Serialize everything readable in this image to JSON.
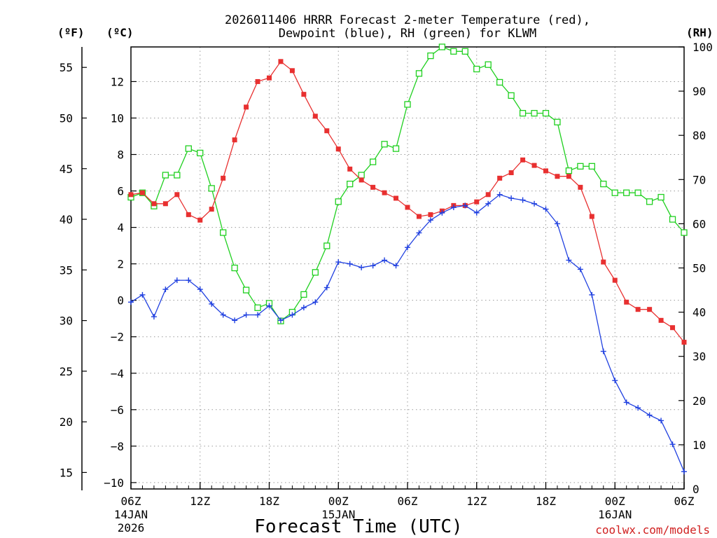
{
  "chart_data": {
    "type": "line",
    "title_line1": "2026011406 HRRR Forecast 2-meter Temperature (red),",
    "title_line2": "Dewpoint (blue), RH (green) for KLWM",
    "xlabel": "Forecast Time (UTC)",
    "credit": "coolwx.com/models",
    "unit_f": "(ºF)",
    "unit_c": "(ºC)",
    "unit_rh": "(RH)",
    "hours_from_start": [
      0,
      1,
      2,
      3,
      4,
      5,
      6,
      7,
      8,
      9,
      10,
      11,
      12,
      13,
      14,
      15,
      16,
      17,
      18,
      19,
      20,
      21,
      22,
      23,
      24,
      25,
      26,
      27,
      28,
      29,
      30,
      31,
      32,
      33,
      34,
      35,
      36,
      37,
      38,
      39,
      40,
      41,
      42,
      43,
      44,
      45,
      46,
      47,
      48
    ],
    "x_range": [
      0,
      48
    ],
    "x_ticks": [
      {
        "h": 0,
        "label": "06Z",
        "date": "14JAN",
        "year": "2026"
      },
      {
        "h": 6,
        "label": "12Z"
      },
      {
        "h": 12,
        "label": "18Z"
      },
      {
        "h": 18,
        "label": "00Z",
        "date": "15JAN"
      },
      {
        "h": 24,
        "label": "06Z"
      },
      {
        "h": 30,
        "label": "12Z"
      },
      {
        "h": 36,
        "label": "18Z"
      },
      {
        "h": 42,
        "label": "00Z",
        "date": "16JAN"
      },
      {
        "h": 48,
        "label": "06Z"
      }
    ],
    "ylim_c": [
      -10.35,
      13.9
    ],
    "yticks_c": [
      -10,
      -8,
      -6,
      -4,
      -2,
      0,
      2,
      4,
      6,
      8,
      10,
      12
    ],
    "ytick_labels_c": [
      "−10",
      "−8",
      "−6",
      "−4",
      "−2",
      "0",
      "2",
      "4",
      "6",
      "8",
      "10",
      "12"
    ],
    "yticks_f": [
      "15",
      "20",
      "25",
      "30",
      "35",
      "40",
      "45",
      "50",
      "55"
    ],
    "ylim_rh": [
      0,
      100
    ],
    "yticks_rh": [
      "0",
      "10",
      "20",
      "30",
      "40",
      "50",
      "60",
      "70",
      "80",
      "90",
      "100"
    ],
    "series": [
      {
        "name": "2-meter Temperature",
        "unit": "C",
        "color": "#e83030",
        "marker": "filled-square",
        "values": [
          5.8,
          5.9,
          5.3,
          5.3,
          5.8,
          4.7,
          4.4,
          5.0,
          6.7,
          8.8,
          10.6,
          12.0,
          12.2,
          13.1,
          12.6,
          11.3,
          10.1,
          9.3,
          8.3,
          7.2,
          6.6,
          6.2,
          5.9,
          5.6,
          5.1,
          4.6,
          4.7,
          4.9,
          5.2,
          5.2,
          5.4,
          5.8,
          6.7,
          7.0,
          7.7,
          7.4,
          7.1,
          6.8,
          6.8,
          6.2,
          4.6,
          2.1,
          1.1,
          -0.1,
          -0.5,
          -0.5,
          -1.1,
          -1.5,
          -2.3
        ]
      },
      {
        "name": "Dewpoint",
        "unit": "C",
        "color": "#2040e0",
        "marker": "plus",
        "values": [
          -0.1,
          0.3,
          -0.9,
          0.6,
          1.1,
          1.1,
          0.6,
          -0.2,
          -0.8,
          -1.1,
          -0.8,
          -0.8,
          -0.3,
          -1.1,
          -0.8,
          -0.4,
          -0.1,
          0.7,
          2.1,
          2.0,
          1.8,
          1.9,
          2.2,
          1.9,
          2.9,
          3.7,
          4.4,
          4.8,
          5.1,
          5.2,
          4.8,
          5.3,
          5.8,
          5.6,
          5.5,
          5.3,
          5.0,
          4.2,
          2.2,
          1.7,
          0.3,
          -2.8,
          -4.4,
          -5.6,
          -5.9,
          -6.3,
          -6.6,
          -7.9,
          -9.4
        ]
      },
      {
        "name": "RH",
        "unit": "%",
        "color": "#20d020",
        "marker": "open-square",
        "values": [
          66,
          67,
          64,
          71,
          71,
          77,
          76,
          68,
          58,
          50,
          45,
          41,
          42,
          38,
          40,
          44,
          49,
          55,
          65,
          69,
          71,
          74,
          78,
          77,
          87,
          94,
          98,
          100,
          99,
          99,
          95,
          96,
          92,
          89,
          85,
          85,
          85,
          83,
          72,
          73,
          73,
          69,
          67,
          67,
          67,
          65,
          66,
          61,
          58
        ]
      }
    ]
  }
}
